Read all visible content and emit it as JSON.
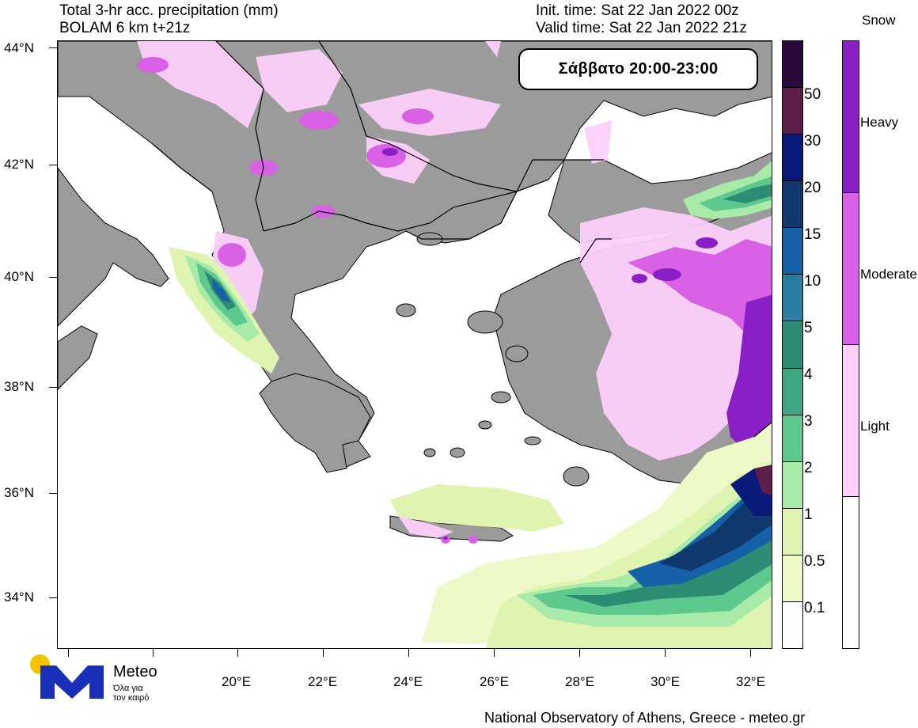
{
  "header": {
    "title_line1": "Total 3-hr acc. precipitation (mm)",
    "title_line2": "BOLAM 6 km t+21z",
    "init_time": "Init. time: Sat 22 Jan 2022 00z",
    "valid_time": "Valid time: Sat 22 Jan 2022 21z"
  },
  "period_label": "Σάββατο 20:00-23:00",
  "lat_labels": [
    "44°N",
    "42°N",
    "40°N",
    "38°N",
    "36°N",
    "34°N"
  ],
  "lon_labels": [
    "20°E",
    "22°E",
    "24°E",
    "26°E",
    "28°E",
    "30°E",
    "32°E"
  ],
  "rain_scale": {
    "labels": [
      "50",
      "30",
      "20",
      "15",
      "10",
      "5",
      "4",
      "3",
      "2",
      "1",
      "0.5",
      "0.1"
    ],
    "colors": [
      "#2a0a3a",
      "#5b1f4a",
      "#0a1a7a",
      "#103a6e",
      "#1660a8",
      "#2a7fa0",
      "#2e8c74",
      "#3ea882",
      "#5ec98e",
      "#a8eaa8",
      "#dff4b0",
      "#eef9c8",
      "#ffffff"
    ]
  },
  "snow_scale": {
    "title": "Snow",
    "labels": [
      "Heavy",
      "Moderate",
      "Light"
    ],
    "colors": [
      "#8a1fc6",
      "#d861e6",
      "#fdd0fa",
      "#ffffff"
    ]
  },
  "map": {
    "land_color": "#9b9b9b",
    "sea_color": "#ffffff",
    "border_color": "#000000"
  },
  "logo": {
    "name": "Meteo",
    "tagline_line1": "Όλα για",
    "tagline_line2": "τον καιρό",
    "dot_color": "#f5c400",
    "brand_color": "#1a2fb8"
  },
  "footer": "National Observatory of Athens, Greece - meteo.gr"
}
